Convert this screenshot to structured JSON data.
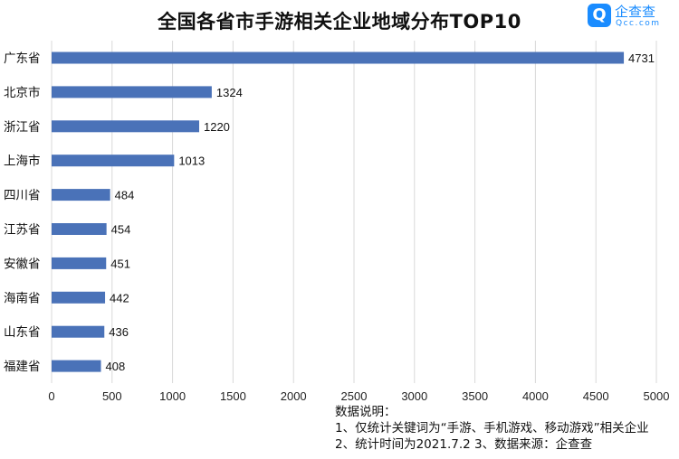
{
  "chart_data": {
    "type": "bar",
    "orientation": "horizontal",
    "title": "全国各省市手游相关企业地域分布TOP10",
    "categories": [
      "广东省",
      "北京市",
      "浙江省",
      "上海市",
      "四川省",
      "江苏省",
      "安徽省",
      "海南省",
      "山东省",
      "福建省"
    ],
    "values": [
      4731,
      1324,
      1220,
      1013,
      484,
      454,
      451,
      442,
      436,
      408
    ],
    "xlim": [
      0,
      5000
    ],
    "xticks": [
      0,
      500,
      1000,
      1500,
      2000,
      2500,
      3000,
      3500,
      4000,
      4500,
      5000
    ],
    "grid": true,
    "bar_color": "#4a72b8"
  },
  "logo": {
    "cn": "企查查",
    "en": "Qcc.com",
    "color": "#1a8cff"
  },
  "notes": {
    "heading": "数据说明：",
    "line1": "1、仅统计关键词为“手游、手机游戏、移动游戏”相关企业",
    "line2": "2、统计时间为2021.7.2   3、数据来源：企查查"
  }
}
